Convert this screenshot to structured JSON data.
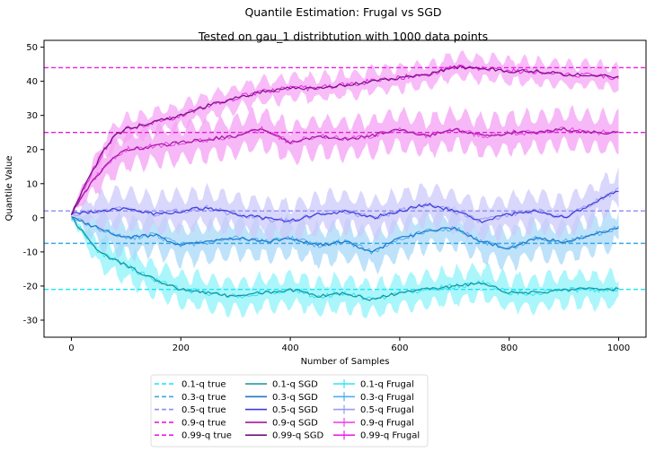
{
  "chart_data": {
    "type": "line",
    "suptitle": "Quantile Estimation: Frugal vs SGD",
    "title": "Tested on gau_1 distribtution with 1000 data points",
    "xlabel": "Number of Samples",
    "ylabel": "Quantile Value",
    "xlim": [
      -50,
      1050
    ],
    "ylim": [
      -35,
      52
    ],
    "xticks": [
      0,
      200,
      400,
      600,
      800,
      1000
    ],
    "yticks": [
      -30,
      -20,
      -10,
      0,
      10,
      20,
      30,
      40,
      50
    ],
    "grid": false,
    "legend_placement": "bottom-center",
    "true_lines": [
      {
        "name": "0.1-q true",
        "value": -21,
        "color": "#17e6f2"
      },
      {
        "name": "0.3-q true",
        "value": -7.5,
        "color": "#38a9e8"
      },
      {
        "name": "0.5-q true",
        "value": 2,
        "color": "#8c8cf0"
      },
      {
        "name": "0.9-q true",
        "value": 25,
        "color": "#e51ed9"
      },
      {
        "name": "0.99-q true",
        "value": 44,
        "color": "#f01ee6"
      }
    ],
    "sgd_series": [
      {
        "name": "0.1-q SGD",
        "color": "#1a8f99",
        "x": [
          0,
          50,
          100,
          150,
          200,
          250,
          300,
          350,
          400,
          450,
          500,
          550,
          600,
          650,
          700,
          750,
          800,
          850,
          900,
          950,
          1000
        ],
        "values": [
          0,
          -10,
          -14,
          -18,
          -21,
          -22,
          -23,
          -22,
          -21,
          -23,
          -22,
          -24,
          -22,
          -21,
          -20,
          -19,
          -22,
          -22,
          -21,
          -21,
          -21
        ]
      },
      {
        "name": "0.3-q SGD",
        "color": "#1e78c8",
        "x": [
          0,
          50,
          100,
          150,
          200,
          250,
          300,
          350,
          400,
          450,
          500,
          550,
          600,
          650,
          700,
          750,
          800,
          850,
          900,
          950,
          1000
        ],
        "values": [
          0,
          -3,
          -6,
          -5,
          -8,
          -7,
          -6,
          -7,
          -6,
          -8,
          -7,
          -10,
          -6,
          -4,
          -3,
          -7,
          -9,
          -6,
          -7,
          -5,
          -3
        ]
      },
      {
        "name": "0.5-q SGD",
        "color": "#3c3cdc",
        "x": [
          0,
          50,
          100,
          150,
          200,
          250,
          300,
          350,
          400,
          450,
          500,
          550,
          600,
          650,
          700,
          750,
          800,
          850,
          900,
          950,
          1000
        ],
        "values": [
          1,
          2,
          3,
          1,
          2,
          3,
          1,
          0,
          -1,
          1,
          2,
          0,
          2,
          4,
          2,
          -1,
          1,
          2,
          0,
          4,
          8
        ]
      },
      {
        "name": "0.9-q SGD",
        "color": "#9c1a9c",
        "x": [
          0,
          20,
          40,
          60,
          80,
          100,
          150,
          200,
          250,
          300,
          350,
          400,
          450,
          500,
          550,
          600,
          650,
          700,
          750,
          800,
          850,
          900,
          950,
          1000
        ],
        "values": [
          1,
          6,
          11,
          15,
          18,
          20,
          21,
          22,
          23,
          24,
          26,
          22,
          24,
          23,
          24,
          26,
          24,
          26,
          24,
          25,
          25,
          26,
          25,
          25
        ]
      },
      {
        "name": "0.99-q SGD",
        "color": "#6e1478",
        "x": [
          0,
          20,
          40,
          60,
          80,
          100,
          150,
          200,
          250,
          300,
          350,
          400,
          450,
          500,
          550,
          600,
          650,
          700,
          750,
          800,
          850,
          900,
          950,
          1000
        ],
        "values": [
          1,
          8,
          14,
          20,
          24,
          26,
          28,
          30,
          33,
          35,
          37,
          38,
          38,
          39,
          40,
          41,
          42,
          44,
          44,
          43,
          43,
          42,
          42,
          41
        ]
      }
    ],
    "frugal_series": [
      {
        "name": "0.1-q Frugal",
        "color": "#2ee6f5",
        "band": "#8ef3fa",
        "x": [
          0,
          50,
          100,
          150,
          200,
          250,
          300,
          350,
          400,
          450,
          500,
          550,
          600,
          650,
          700,
          750,
          800,
          850,
          900,
          950,
          1000
        ],
        "values": [
          0,
          -10,
          -14,
          -18,
          -21,
          -22,
          -23,
          -22,
          -21,
          -23,
          -22,
          -24,
          -22,
          -21,
          -20,
          -19,
          -22,
          -22,
          -21,
          -21,
          -21
        ]
      },
      {
        "name": "0.3-q Frugal",
        "color": "#4fb0f0",
        "band": "#a8d8f8",
        "x": [
          0,
          50,
          100,
          150,
          200,
          250,
          300,
          350,
          400,
          450,
          500,
          550,
          600,
          650,
          700,
          750,
          800,
          850,
          900,
          950,
          1000
        ],
        "values": [
          0,
          -3,
          -6,
          -5,
          -8,
          -7,
          -6,
          -7,
          -6,
          -8,
          -7,
          -10,
          -6,
          -4,
          -3,
          -7,
          -9,
          -6,
          -7,
          -5,
          -3
        ]
      },
      {
        "name": "0.5-q Frugal",
        "color": "#9a9af5",
        "band": "#cccafa",
        "x": [
          0,
          50,
          100,
          150,
          200,
          250,
          300,
          350,
          400,
          450,
          500,
          550,
          600,
          650,
          700,
          750,
          800,
          850,
          900,
          950,
          1000
        ],
        "values": [
          1,
          2,
          3,
          1,
          2,
          3,
          1,
          0,
          -1,
          1,
          2,
          0,
          2,
          4,
          2,
          -1,
          1,
          2,
          0,
          4,
          8
        ]
      },
      {
        "name": "0.9-q Frugal",
        "color": "#ee44ee",
        "band": "#f4a0f4",
        "x": [
          0,
          20,
          40,
          60,
          80,
          100,
          150,
          200,
          250,
          300,
          350,
          400,
          450,
          500,
          550,
          600,
          650,
          700,
          750,
          800,
          850,
          900,
          950,
          1000
        ],
        "values": [
          1,
          6,
          11,
          15,
          18,
          20,
          21,
          22,
          23,
          24,
          26,
          22,
          24,
          23,
          24,
          26,
          24,
          26,
          24,
          25,
          25,
          26,
          25,
          25
        ]
      },
      {
        "name": "0.99-q Frugal",
        "color": "#f020f0",
        "band": "#f6a6f6",
        "x": [
          0,
          20,
          40,
          60,
          80,
          100,
          150,
          200,
          250,
          300,
          350,
          400,
          450,
          500,
          550,
          600,
          650,
          700,
          750,
          800,
          850,
          900,
          950,
          1000
        ],
        "values": [
          1,
          8,
          14,
          20,
          24,
          26,
          28,
          30,
          33,
          35,
          37,
          38,
          38,
          39,
          40,
          41,
          42,
          44,
          44,
          43,
          43,
          42,
          42,
          41
        ]
      }
    ]
  }
}
